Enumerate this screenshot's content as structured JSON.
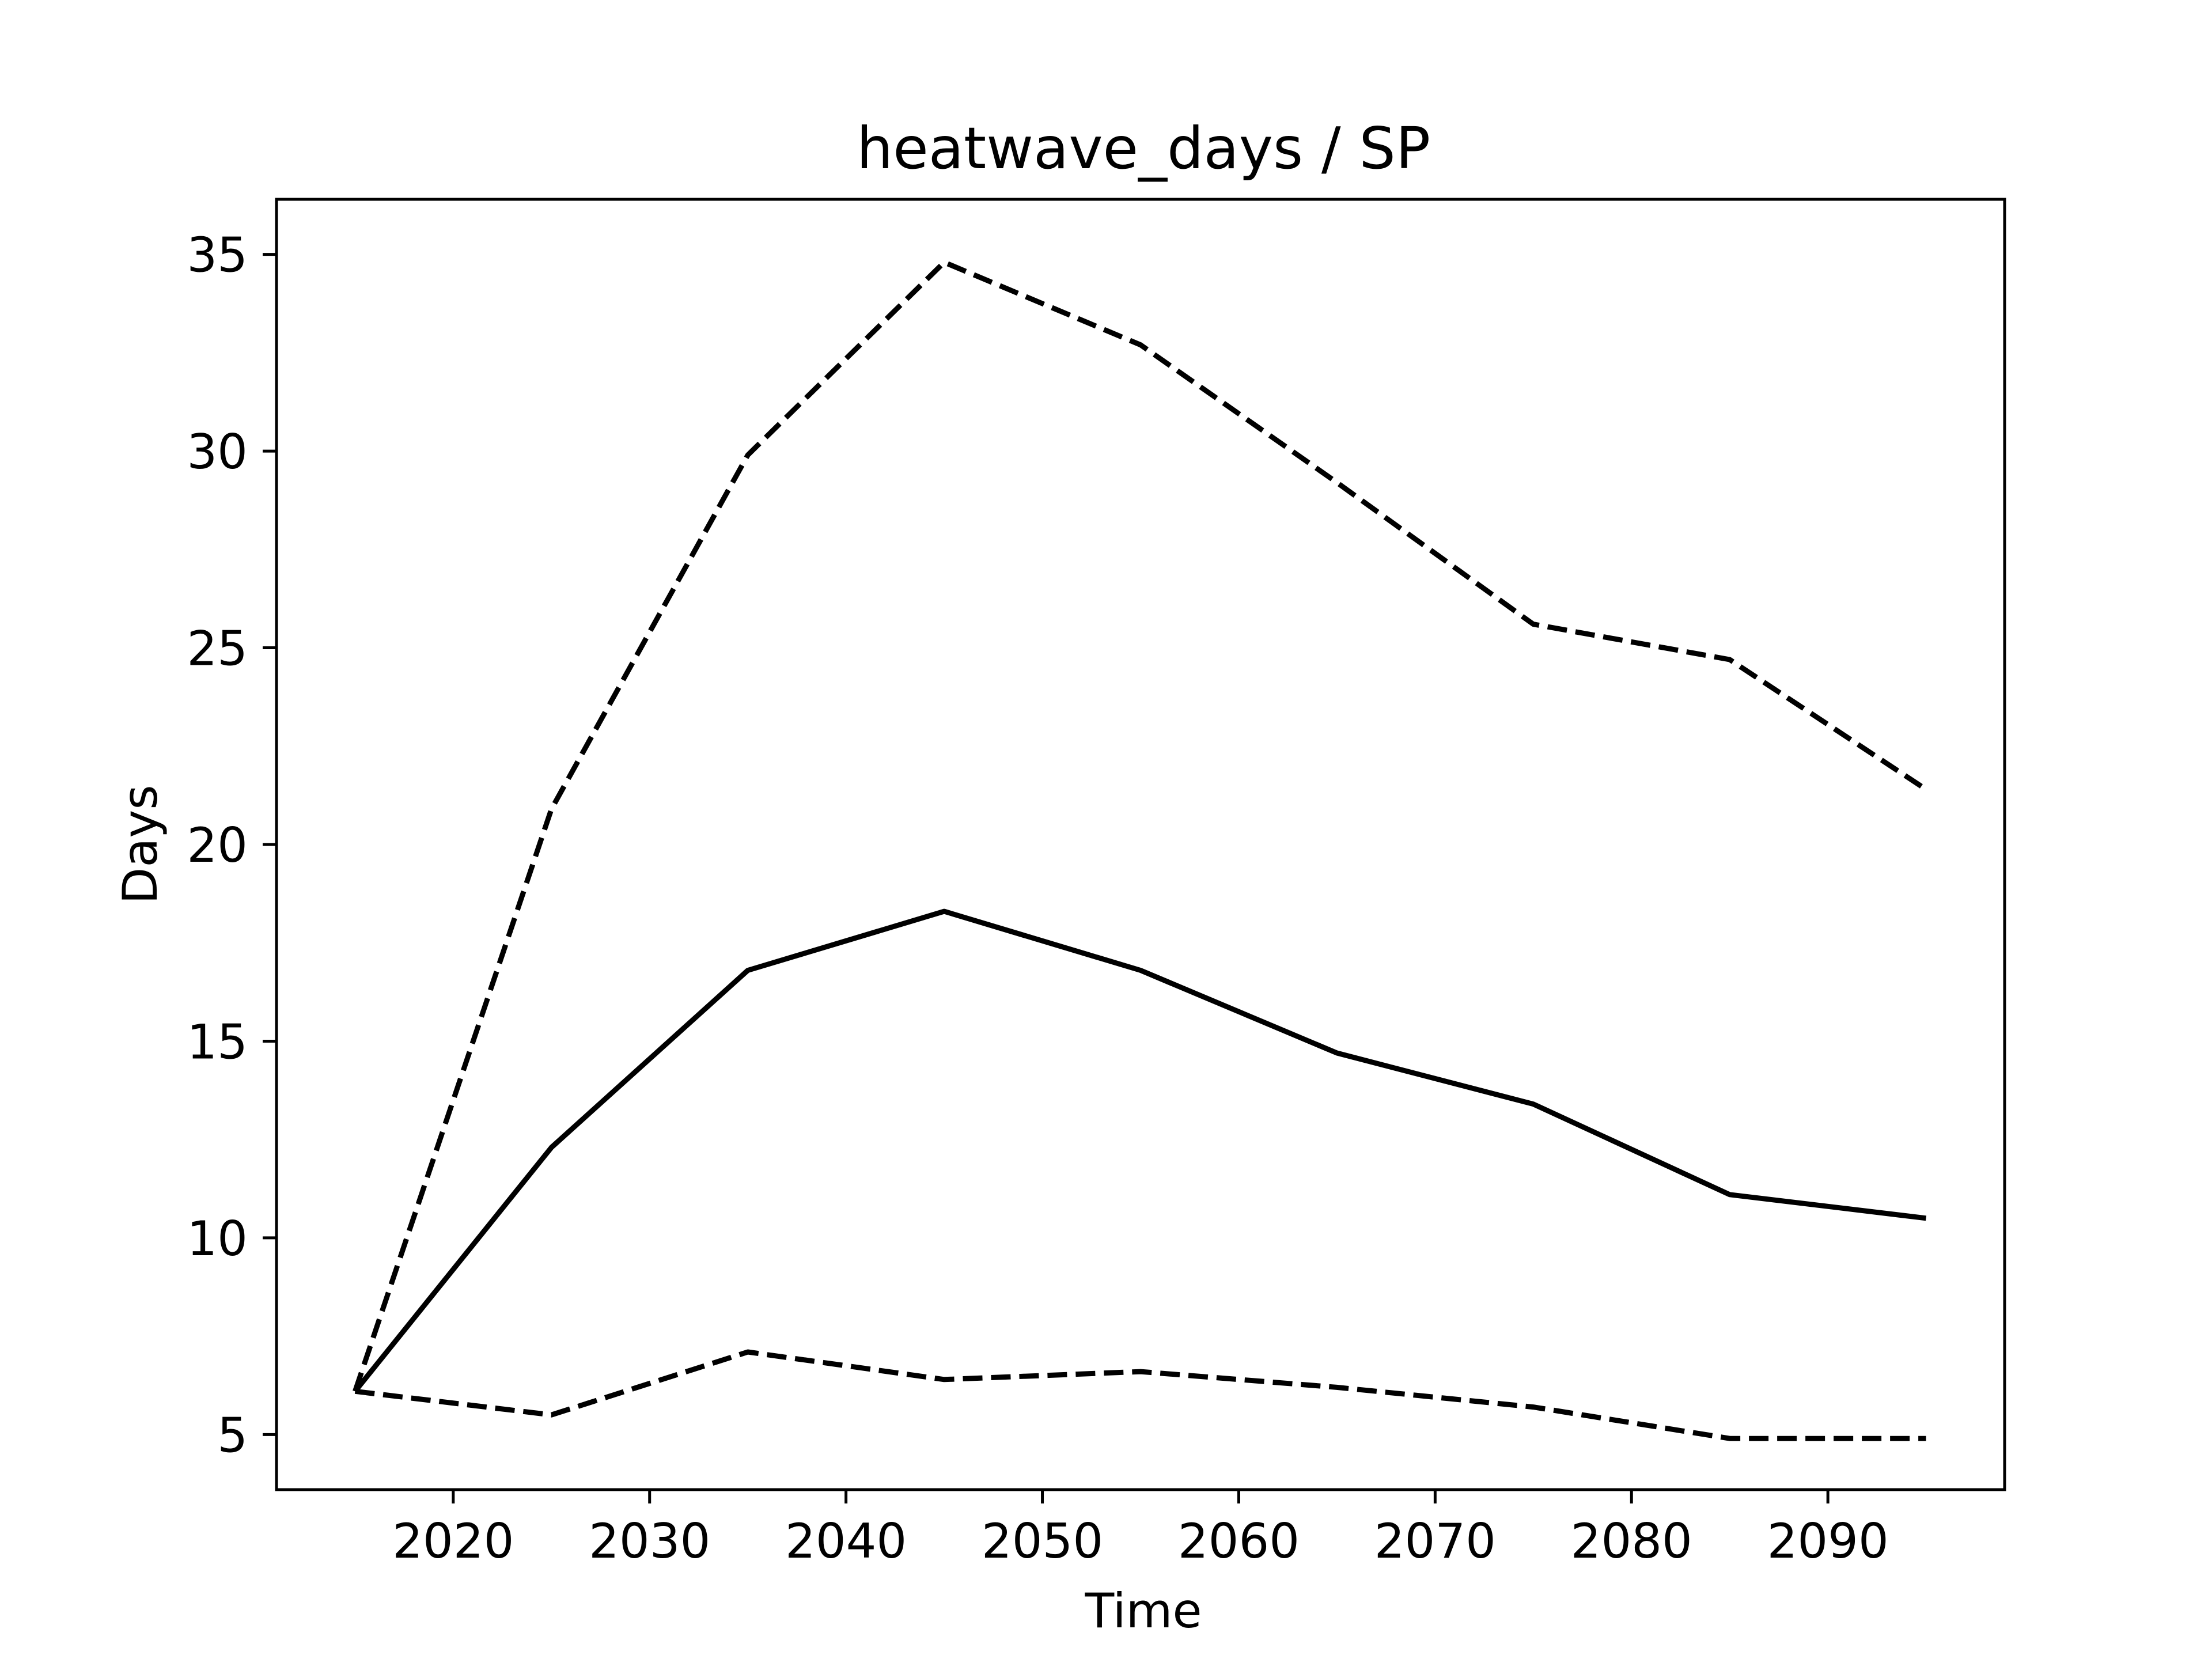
{
  "chart_data": {
    "type": "line",
    "title": "heatwave_days / SP",
    "xlabel": "Time",
    "ylabel": "Days",
    "xlim": [
      2011,
      2099
    ],
    "ylim": [
      3.6,
      36.4
    ],
    "xticks": [
      2020,
      2030,
      2040,
      2050,
      2060,
      2070,
      2080,
      2090
    ],
    "yticks": [
      5,
      10,
      15,
      20,
      25,
      30,
      35
    ],
    "grid": false,
    "series": [
      {
        "style": "solid",
        "color": "#000000",
        "x": [
          2015,
          2025,
          2035,
          2045,
          2055,
          2065,
          2075,
          2085,
          2095
        ],
        "y": [
          6.1,
          12.3,
          16.8,
          18.3,
          16.8,
          14.7,
          13.4,
          11.1,
          10.5
        ]
      },
      {
        "style": "dashed",
        "color": "#000000",
        "x": [
          2015,
          2025,
          2035,
          2045,
          2055,
          2065,
          2075,
          2085,
          2095
        ],
        "y": [
          6.1,
          20.9,
          29.9,
          34.8,
          32.7,
          29.2,
          25.6,
          24.7,
          21.4
        ]
      },
      {
        "style": "dashed",
        "color": "#000000",
        "x": [
          2015,
          2025,
          2035,
          2045,
          2055,
          2065,
          2075,
          2085,
          2095
        ],
        "y": [
          6.1,
          5.5,
          7.1,
          6.4,
          6.6,
          6.2,
          5.7,
          4.9,
          4.9
        ]
      }
    ]
  }
}
